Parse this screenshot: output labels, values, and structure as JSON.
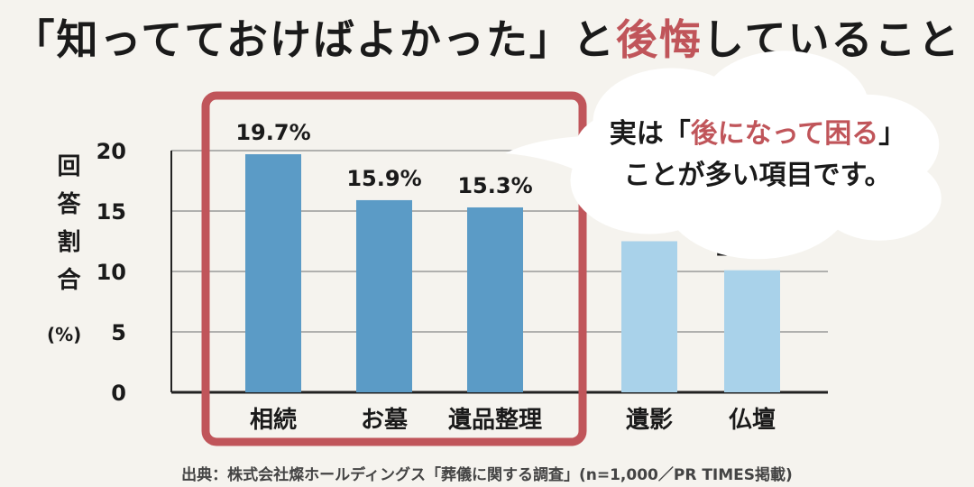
{
  "title": {
    "before": "「知ってておけばよかった」と",
    "accent": "後悔",
    "after": "していること"
  },
  "bubble": {
    "line1_before": "実は「",
    "line1_accent": "後になって困る",
    "line1_after": "」",
    "line2": "ことが多い項目です。"
  },
  "source": "出典：株式会社燦ホールディングス「葬儀に関する調査」(n=1,000／PR TIMES掲載)",
  "colors": {
    "highlight_bar": "#5b9bc6",
    "other_bar": "#a9d2ea",
    "accent": "#c0555a"
  },
  "chart_data": {
    "type": "bar",
    "title": "「知ってておけばよかった」と後悔していること",
    "ylabel": "回答割合",
    "yunit": "(%)",
    "ylim": [
      0,
      20
    ],
    "yticks": [
      "0",
      "5",
      "10",
      "15",
      "20"
    ],
    "categories": [
      "相続",
      "お墓",
      "遺品整理",
      "遺影",
      "仏壇"
    ],
    "values": [
      19.7,
      15.9,
      15.3,
      12.5,
      10.1
    ],
    "value_labels": [
      "19.7%",
      "15.9%",
      "15.3%",
      "12.5%",
      "10.1%"
    ],
    "highlighted": [
      true,
      true,
      true,
      false,
      false
    ],
    "grid": true
  }
}
